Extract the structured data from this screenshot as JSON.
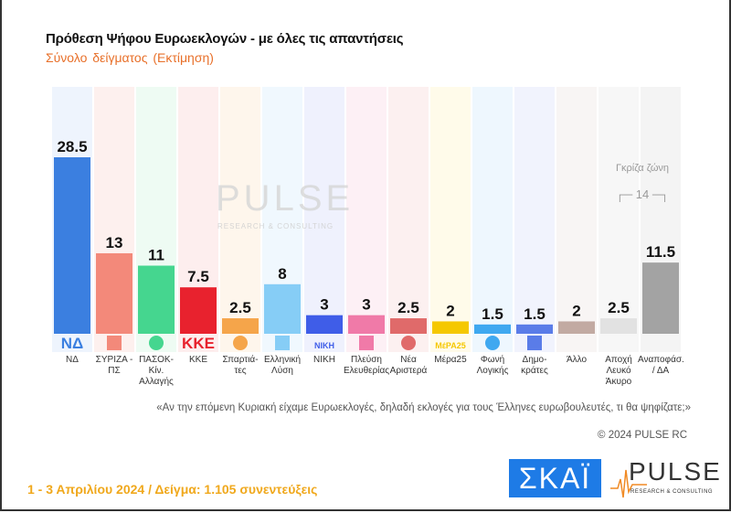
{
  "title": "Πρόθεση Ψήφου Ευρωεκλογών - με όλες τις απαντήσεις",
  "subtitle": "Σύνολο δείγματος   (Εκτίμηση)",
  "question": "«Αν την επόμενη Κυριακή είχαμε Ευρωεκλογές, δηλαδή εκλογές για τους Έλληνες ευρωβουλευτές, τι θα ψηφίζατε;»",
  "copyright": "© 2024 PULSE RC",
  "footer": "1 - 3  Απριλίου 2024  /  Δείγμα:  1.105 συνεντεύξεις",
  "watermark": {
    "word": "PULSE",
    "sub": "RESEARCH & CONSULTING"
  },
  "logos": {
    "skai": "ΣΚΑΪ",
    "pulse": "PULSE",
    "pulse_sub": "RESEARCH & CONSULTING"
  },
  "grey_zone": {
    "label": "Γκρίζα ζώνη",
    "value": "┌─ 14 ─┐"
  },
  "chart_data": {
    "type": "bar",
    "title": "Πρόθεση Ψήφου Ευρωεκλογών - με όλες τις απαντήσεις",
    "ylim": [
      0,
      30
    ],
    "grid": false,
    "categories": [
      "ΝΔ",
      "ΣΥΡΙΖΑ - ΠΣ",
      "ΠΑΣΟΚ-Κίν. Αλλαγής",
      "ΚΚΕ",
      "Σπαρτιά- τες",
      "Ελληνική Λύση",
      "ΝΙΚΗ",
      "Πλεύση Ελευθερίας",
      "Νέα Αριστερά",
      "Μέρα25",
      "Φωνή Λογικής",
      "Δημο- κράτες",
      "Άλλο",
      "Αποχή Λευκό Άκυρο",
      "Αναποφάσ. / ΔΑ"
    ],
    "values": [
      28.5,
      13,
      11,
      7.5,
      2.5,
      8,
      3,
      3,
      2.5,
      2,
      1.5,
      1.5,
      2,
      2.5,
      11.5
    ],
    "labels": [
      "28.5",
      "13",
      "11",
      "7.5",
      "2.5",
      "8",
      "3",
      "3",
      "2.5",
      "2",
      "1.5",
      "1.5",
      "2",
      "2.5",
      "11.5"
    ],
    "colors": [
      "#3b7fe0",
      "#f3897a",
      "#45d68f",
      "#e8222e",
      "#f5a54a",
      "#86cdf6",
      "#3f5de8",
      "#f07aa8",
      "#e06a6a",
      "#f5c800",
      "#3fa8f0",
      "#5a7ce8",
      "#c2aaa2",
      "#e2e2e2",
      "#a3a3a3"
    ],
    "bg_colors": [
      "#eef4fd",
      "#fdf0ee",
      "#eefbf3",
      "#fdeeee",
      "#fef6ec",
      "#f0f8fe",
      "#eff1fd",
      "#fdf0f5",
      "#fcf0f0",
      "#fffbea",
      "#eef7fe",
      "#f1f3fd",
      "#f8f5f4",
      "#f7f7f7",
      "#f4f4f4"
    ],
    "logo_icons": [
      "nd-logo-icon",
      "syriza-logo-icon",
      "pasok-logo-icon",
      "kke-logo-icon",
      "spartiates-logo-icon",
      "elliniki-lysi-logo-icon",
      "niki-logo-icon",
      "plefsi-logo-icon",
      "nea-aristera-logo-icon",
      "mera25-logo-icon",
      "foni-logikis-logo-icon",
      "dimokrates-logo-icon",
      "",
      "",
      ""
    ],
    "logo_text": [
      "ΝΔ",
      "",
      "",
      "ΚΚΕ",
      "",
      "",
      "ΝΙΚΗ",
      "",
      "",
      "ΜέΡΑ25",
      "",
      "",
      "",
      "",
      ""
    ]
  }
}
